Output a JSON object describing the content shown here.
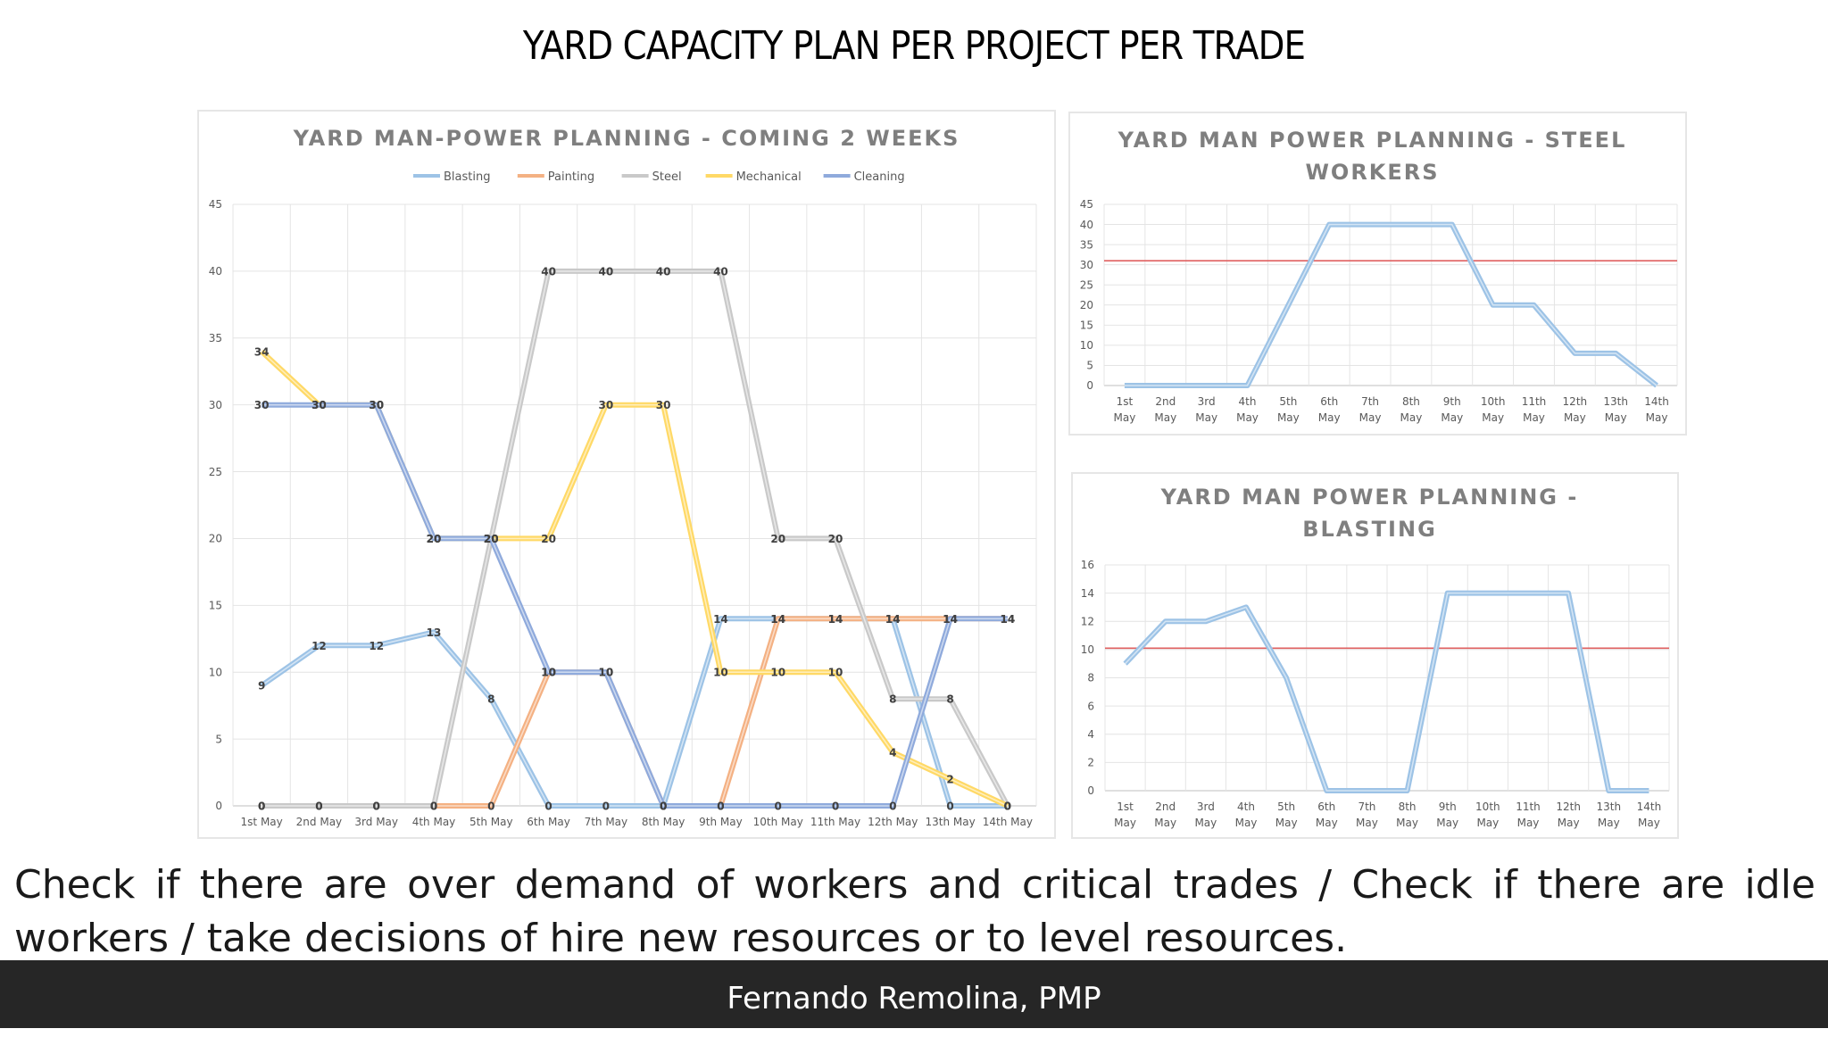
{
  "slide": {
    "title": "YARD CAPACITY PLAN PER PROJECT PER TRADE",
    "caption": "Check if there are over demand of workers and critical trades / Check if there are idle workers / take decisions of hire new resources or to level resources.",
    "footer": "Fernando Remolina, PMP"
  },
  "chart_data": [
    {
      "type": "line",
      "title": "YARD MAN-POWER PLANNING - COMING 2 WEEKS",
      "categories": [
        "1st May",
        "2nd May",
        "3rd May",
        "4th May",
        "5th May",
        "6th May",
        "7th May",
        "8th May",
        "9th May",
        "10th May",
        "11th May",
        "12th May",
        "13th May",
        "14th May"
      ],
      "ylim": [
        0,
        45
      ],
      "yticks": [
        "0",
        "5",
        "10",
        "15",
        "20",
        "25",
        "30",
        "35",
        "40",
        "45"
      ],
      "grid": true,
      "legend_position": "top",
      "data_labels": true,
      "series": [
        {
          "name": "Blasting",
          "color": "#9dc3e6",
          "values": [
            9,
            12,
            12,
            13,
            8,
            0,
            0,
            0,
            14,
            14,
            14,
            14,
            0,
            0
          ]
        },
        {
          "name": "Painting",
          "color": "#f4b183",
          "values": [
            0,
            0,
            0,
            0,
            0,
            10,
            10,
            0,
            0,
            14,
            14,
            14,
            14,
            14
          ]
        },
        {
          "name": "Steel",
          "color": "#c9c9c9",
          "values": [
            0,
            0,
            0,
            0,
            20,
            40,
            40,
            40,
            40,
            20,
            20,
            8,
            8,
            0
          ]
        },
        {
          "name": "Mechanical",
          "color": "#ffd966",
          "values": [
            34,
            30,
            30,
            20,
            20,
            20,
            30,
            30,
            10,
            10,
            10,
            4,
            2,
            0
          ]
        },
        {
          "name": "Cleaning",
          "color": "#8faadc",
          "values": [
            30,
            30,
            30,
            20,
            20,
            10,
            10,
            0,
            0,
            0,
            0,
            0,
            14,
            14
          ]
        }
      ]
    },
    {
      "type": "line",
      "title_lines": [
        "YARD MAN POWER PLANNING - STEEL",
        "WORKERS"
      ],
      "categories_top": [
        "1st",
        "2nd",
        "3rd",
        "4th",
        "5th",
        "6th",
        "7th",
        "8th",
        "9th",
        "10th",
        "11th",
        "12th",
        "13th",
        "14th"
      ],
      "categories_bottom": [
        "May",
        "May",
        "May",
        "May",
        "May",
        "May",
        "May",
        "May",
        "May",
        "May",
        "May",
        "May",
        "May",
        "May"
      ],
      "ylim": [
        0,
        45
      ],
      "yticks": [
        "0",
        "5",
        "10",
        "15",
        "20",
        "25",
        "30",
        "35",
        "40",
        "45"
      ],
      "grid": true,
      "series": [
        {
          "color": "#9dc3e6",
          "values": [
            0,
            0,
            0,
            0,
            20,
            40,
            40,
            40,
            40,
            20,
            20,
            8,
            8,
            0
          ]
        }
      ],
      "reference_line": {
        "value": 31,
        "color": "#e06060"
      }
    },
    {
      "type": "line",
      "title_lines": [
        "YARD MAN POWER PLANNING -",
        "BLASTING"
      ],
      "categories_top": [
        "1st",
        "2nd",
        "3rd",
        "4th",
        "5th",
        "6th",
        "7th",
        "8th",
        "9th",
        "10th",
        "11th",
        "12th",
        "13th",
        "14th"
      ],
      "categories_bottom": [
        "May",
        "May",
        "May",
        "May",
        "May",
        "May",
        "May",
        "May",
        "May",
        "May",
        "May",
        "May",
        "May",
        "May"
      ],
      "ylim": [
        0,
        16
      ],
      "yticks": [
        "0",
        "2",
        "4",
        "6",
        "8",
        "10",
        "12",
        "14",
        "16"
      ],
      "grid": true,
      "series": [
        {
          "color": "#9dc3e6",
          "values": [
            9,
            12,
            12,
            13,
            8,
            0,
            0,
            0,
            14,
            14,
            14,
            14,
            0,
            0
          ]
        }
      ],
      "reference_line": {
        "value": 10.1,
        "color": "#e06060"
      }
    }
  ]
}
